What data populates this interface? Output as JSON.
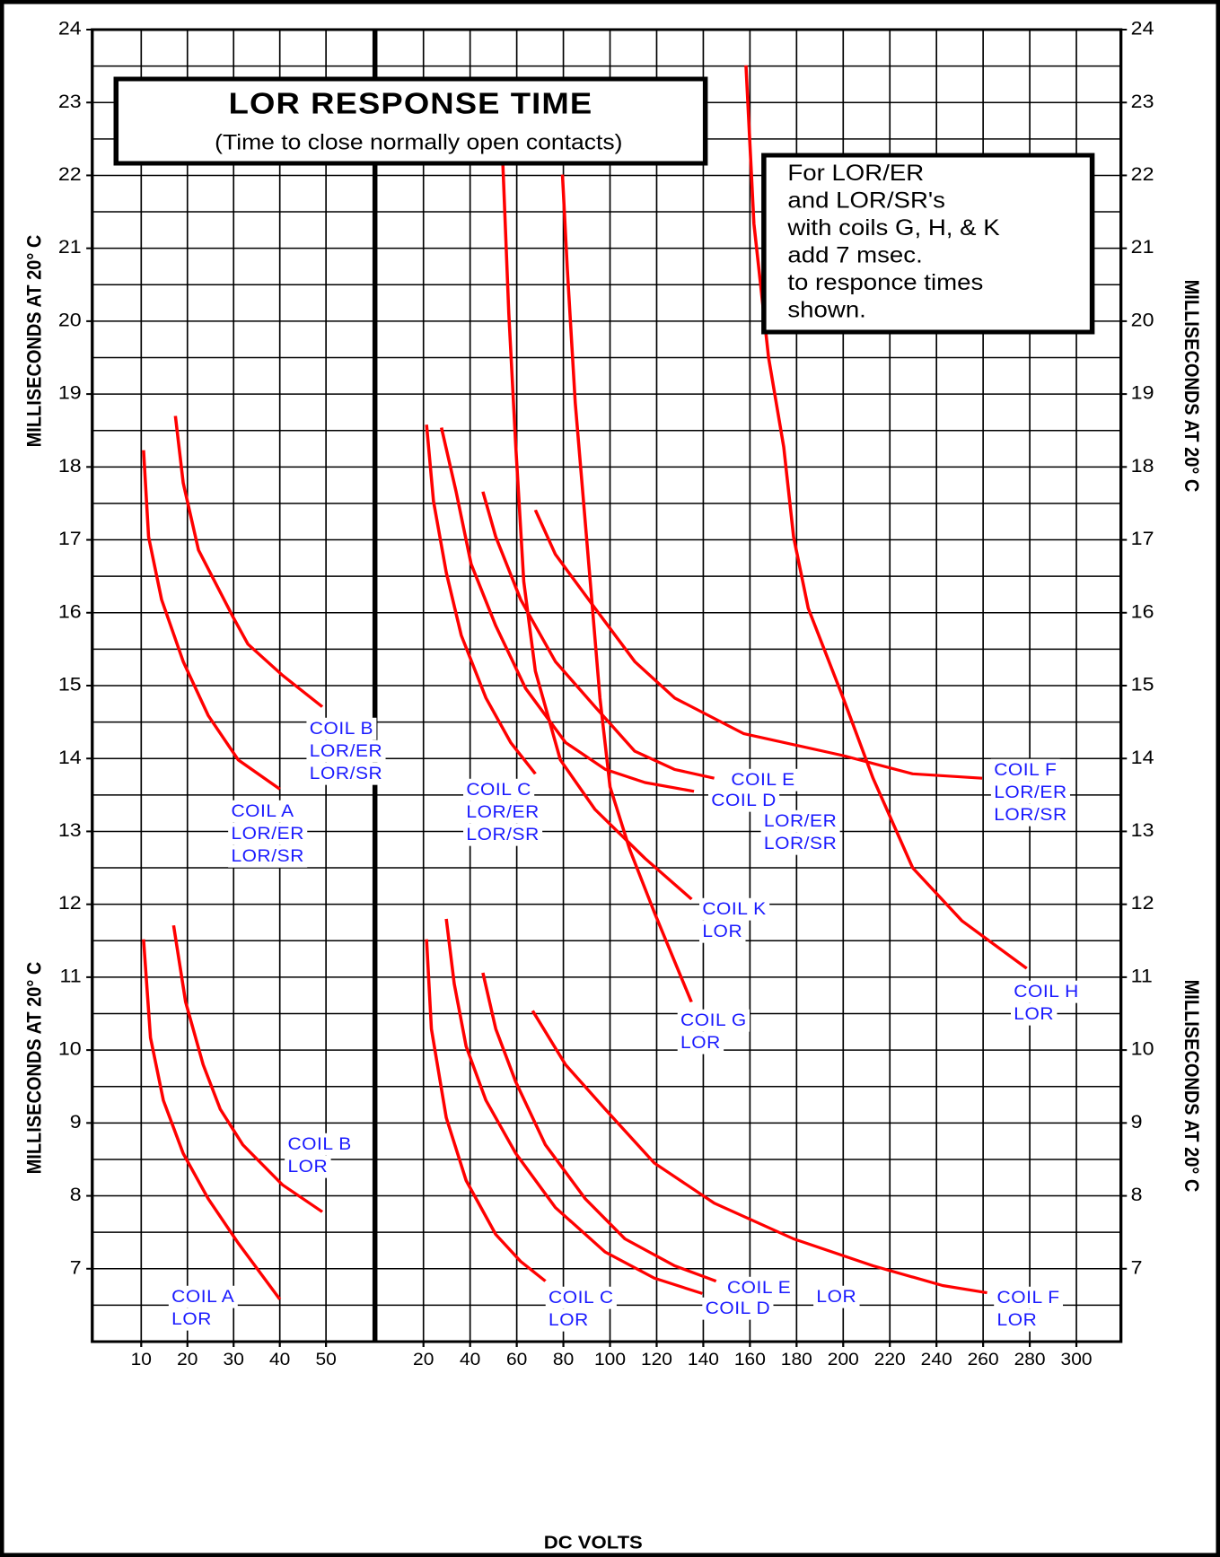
{
  "chart_data": {
    "type": "line",
    "title": "LOR RESPONSE TIME",
    "subtitle": "(Time to close normally open contacts)",
    "note": [
      "For LOR/ER",
      "and LOR/SR's",
      "with coils G, H, & K",
      "add 7 msec.",
      "to responce times",
      "shown."
    ],
    "x_label": "DC VOLTS",
    "y_label": "MILLISECONDS AT 20° C",
    "ylim": [
      6,
      24
    ],
    "yticks": [
      7,
      8,
      9,
      10,
      11,
      12,
      13,
      14,
      15,
      16,
      17,
      18,
      19,
      20,
      21,
      22,
      23,
      24
    ],
    "y_minor_ticks": [
      6.5,
      7.5,
      8.5,
      9.5,
      10.5,
      11.5,
      12.5,
      13.5,
      14.5,
      15.5,
      16.5,
      17.5,
      18.5,
      19.5,
      20.5,
      21.5,
      22.5,
      23.5
    ],
    "grid": true,
    "color": "#ff0000",
    "label_color": "#1a1aff",
    "panels": [
      {
        "xlim": [
          -0.6,
          60.6
        ],
        "xticks": [
          10,
          20,
          30,
          40,
          50
        ],
        "series": [
          {
            "name": [
              "COIL A",
              "LOR/ER",
              "LOR/SR"
            ],
            "x": [
              10.5,
              11.6,
              14.4,
              19.1,
              24.5,
              31,
              40
            ],
            "values": [
              18.23,
              17.04,
              16.18,
              15.33,
              14.59,
              13.98,
              13.58
            ]
          },
          {
            "name": [
              "COIL B",
              "LOR/ER",
              "LOR/SR"
            ],
            "x": [
              17.4,
              19.1,
              22.4,
              29.9,
              33.1,
              40.6,
              49.2
            ],
            "values": [
              18.7,
              17.78,
              16.86,
              15.94,
              15.57,
              15.14,
              14.71
            ]
          },
          {
            "name": [
              "COIL A",
              "LOR"
            ],
            "x": [
              10.5,
              12,
              14.8,
              19.1,
              24.5,
              31,
              40
            ],
            "values": [
              11.52,
              10.17,
              9.31,
              8.58,
              7.96,
              7.35,
              6.58
            ]
          },
          {
            "name": [
              "COIL B",
              "LOR"
            ],
            "x": [
              17,
              19.6,
              23.4,
              27.1,
              32,
              40.6,
              49.2
            ],
            "values": [
              11.71,
              10.66,
              9.8,
              9.19,
              8.7,
              8.15,
              7.78
            ]
          }
        ]
      },
      {
        "xlim": [
          -0.8,
          319.1
        ],
        "xticks": [
          20,
          40,
          60,
          80,
          100,
          120,
          140,
          160,
          180,
          200,
          220,
          240,
          260,
          280,
          300
        ],
        "series": [
          {
            "name": [
              "COIL C",
              "LOR/ER",
              "LOR/SR"
            ],
            "x": [
              21.3,
              24.3,
              29.8,
              36.2,
              46.8,
              57.4,
              68
            ],
            "values": [
              18.58,
              17.53,
              16.55,
              15.69,
              14.83,
              14.22,
              13.79
            ]
          },
          {
            "name": [
              "COIL D",
              "LOR/ER",
              "LOR/SR"
            ],
            "x": [
              27.7,
              34,
              40.4,
              51,
              63.8,
              80.9,
              98,
              115,
              136
            ],
            "values": [
              18.54,
              17.66,
              16.67,
              15.82,
              14.96,
              14.22,
              13.85,
              13.67,
              13.55
            ]
          },
          {
            "name": [
              "COIL E"
            ],
            "x": [
              45.5,
              51,
              61.7,
              76.6,
              93.6,
              110.6,
              127.7,
              144.7
            ],
            "values": [
              17.66,
              17.04,
              16.18,
              15.33,
              14.71,
              14.1,
              13.85,
              13.73
            ]
          },
          {
            "name": [
              "COIL F",
              "LOR/ER",
              "LOR/SR"
            ],
            "x": [
              68,
              76.6,
              93.6,
              110.6,
              127.7,
              157.4,
              200,
              229.8,
              259.6
            ],
            "values": [
              17.41,
              16.8,
              16.06,
              15.33,
              14.83,
              14.34,
              14.04,
              13.79,
              13.73
            ]
          },
          {
            "name": [
              "COIL K",
              "LOR"
            ],
            "x": [
              54,
              56.6,
              59.6,
              63,
              68,
              78.7,
              93.6,
              115,
              135
            ],
            "values": [
              22.2,
              20.11,
              18.27,
              16.43,
              15.2,
              13.98,
              13.3,
              12.63,
              12.07
            ]
          },
          {
            "name": [
              "COIL G",
              "LOR"
            ],
            "x": [
              79.6,
              81.7,
              85.1,
              91.5,
              95.7,
              100,
              108.5,
              119,
              134.9
            ],
            "values": [
              22.01,
              20.72,
              18.88,
              16.43,
              14.83,
              13.61,
              12.75,
              11.89,
              10.66
            ]
          },
          {
            "name": [
              "COIL H",
              "LOR"
            ],
            "x": [
              158.3,
              161.7,
              168,
              174.5,
              178.7,
              185,
              200,
              212.8,
              229.8,
              251,
              278.7
            ],
            "values": [
              23.51,
              21.34,
              19.5,
              18.27,
              17.04,
              16.06,
              14.83,
              13.73,
              12.5,
              11.77,
              11.12
            ]
          },
          {
            "name": [
              "COIL C",
              "LOR"
            ],
            "x": [
              21.3,
              23.4,
              29.8,
              38.3,
              51,
              61.7,
              72.3
            ],
            "values": [
              11.52,
              10.29,
              9.07,
              8.21,
              7.47,
              7.1,
              6.83
            ]
          },
          {
            "name": [
              "COIL D",
              "LOR"
            ],
            "x": [
              29.8,
              33.2,
              38.3,
              46.8,
              59.6,
              76.6,
              97.9,
              119,
              139.6
            ],
            "values": [
              11.8,
              10.91,
              10.05,
              9.31,
              8.58,
              7.84,
              7.23,
              6.87,
              6.66
            ]
          },
          {
            "name": [
              "COIL E"
            ],
            "x": [
              45.5,
              51,
              59.6,
              72.3,
              89.4,
              106.4,
              127.7,
              145.5
            ],
            "values": [
              11.06,
              10.29,
              9.56,
              8.7,
              7.96,
              7.41,
              7.04,
              6.83
            ]
          },
          {
            "name": [
              "COIL F",
              "LOR"
            ],
            "x": [
              66.8,
              80.9,
              97.9,
              119,
              144.7,
              178.7,
              212.8,
              242.6,
              261.7
            ],
            "values": [
              10.54,
              9.8,
              9.19,
              8.45,
              7.9,
              7.41,
              7.04,
              6.77,
              6.67
            ]
          }
        ]
      }
    ]
  }
}
